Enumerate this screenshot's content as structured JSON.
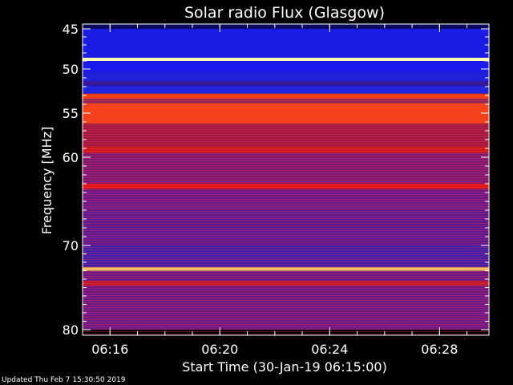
{
  "chart_data": {
    "type": "heatmap",
    "title": "Solar radio Flux (Glasgow)",
    "xlabel": "Start Time (30-Jan-19 06:15:00)",
    "ylabel": "Frequency [MHz]",
    "x_ticks": [
      {
        "label": "06:16",
        "minute": 16
      },
      {
        "label": "06:20",
        "minute": 20
      },
      {
        "label": "06:24",
        "minute": 24
      },
      {
        "label": "06:28",
        "minute": 28
      }
    ],
    "y_ticks": [
      45,
      50,
      55,
      60,
      70,
      80
    ],
    "xlim_minutes": [
      15.0,
      29.8
    ],
    "ylim_mhz": [
      45,
      80
    ],
    "bands": [
      {
        "f0": 45.0,
        "f1": 48.6,
        "color": "#1b1be6"
      },
      {
        "f0": 48.6,
        "f1": 49.0,
        "color": "#ffffb0"
      },
      {
        "f0": 49.0,
        "f1": 50.4,
        "color": "#1a1aea"
      },
      {
        "f0": 50.4,
        "f1": 51.4,
        "color": "#2222dd"
      },
      {
        "f0": 51.4,
        "f1": 51.9,
        "color": "#3a1a9a"
      },
      {
        "f0": 51.9,
        "f1": 52.8,
        "color": "#2323dd"
      },
      {
        "f0": 52.8,
        "f1": 53.4,
        "color": "#f04010"
      },
      {
        "f0": 53.4,
        "f1": 53.9,
        "color": "#8a2a5a"
      },
      {
        "f0": 53.9,
        "f1": 56.2,
        "color": "#f24412"
      },
      {
        "f0": 56.2,
        "f1": 58.8,
        "color": "#a01a40"
      },
      {
        "f0": 58.8,
        "f1": 59.5,
        "color": "#d01a1a"
      },
      {
        "f0": 59.5,
        "f1": 63.0,
        "color": "#7a1a70"
      },
      {
        "f0": 63.0,
        "f1": 63.6,
        "color": "#e01818"
      },
      {
        "f0": 63.6,
        "f1": 66.0,
        "color": "#6a1a86"
      },
      {
        "f0": 66.0,
        "f1": 70.0,
        "color": "#5a1a8e"
      },
      {
        "f0": 70.0,
        "f1": 72.6,
        "color": "#3f1fa8"
      },
      {
        "f0": 72.6,
        "f1": 73.0,
        "color": "#ffd060"
      },
      {
        "f0": 73.0,
        "f1": 74.2,
        "color": "#6a1a80"
      },
      {
        "f0": 74.2,
        "f1": 74.8,
        "color": "#c01a2a"
      },
      {
        "f0": 74.8,
        "f1": 80.0,
        "color": "#6a1a84"
      }
    ],
    "colormap": "blue-purple-red-yellow",
    "grid": false
  },
  "footer": "Updated Thu Feb  7 15:30:50 2019"
}
